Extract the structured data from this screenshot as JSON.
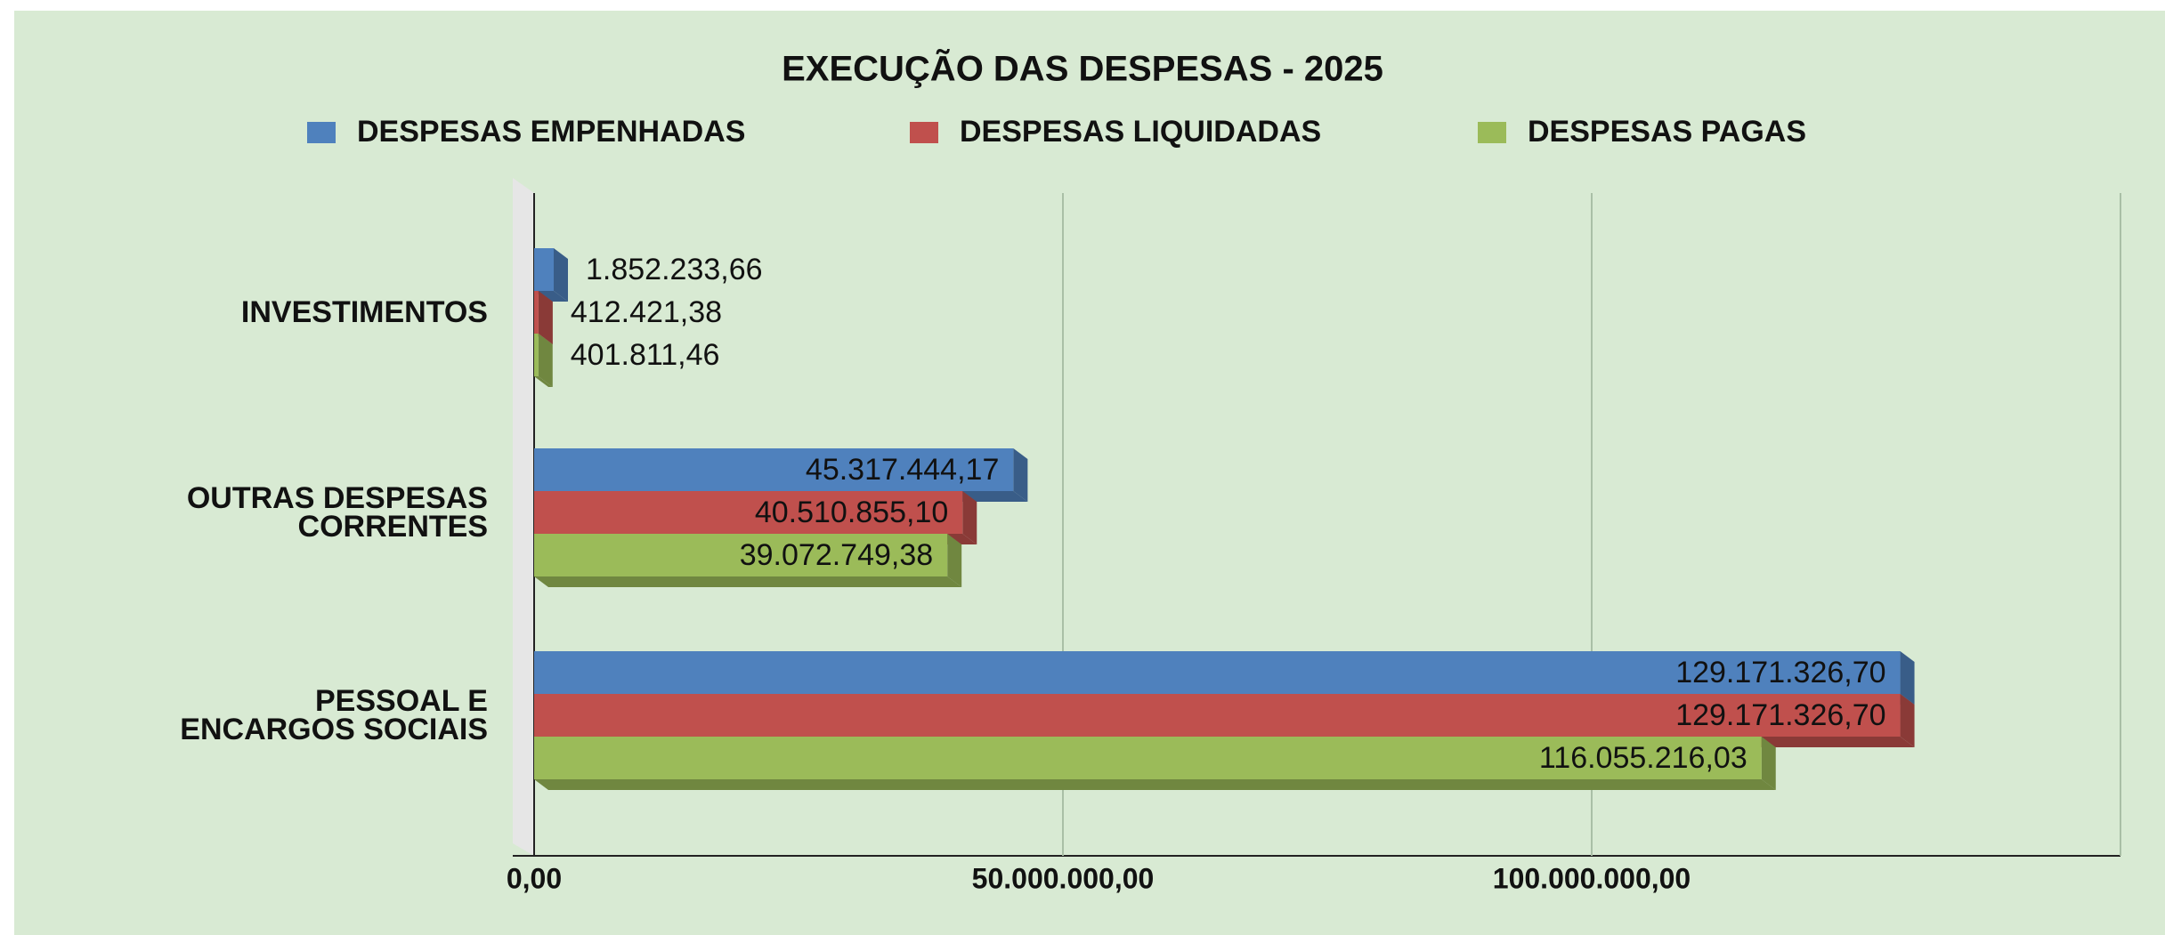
{
  "chart_data": {
    "type": "bar",
    "orientation": "horizontal",
    "title": "EXECUÇÃO DAS DESPESAS - 2025",
    "categories": [
      "INVESTIMENTOS",
      "OUTRAS DESPESAS\nCORRENTES",
      "PESSOAL E\nENCARGOS SOCIAIS"
    ],
    "series": [
      {
        "name": "DESPESAS EMPENHADAS",
        "color": "#4f81bd",
        "values": [
          1852233.66,
          45317444.17,
          129171326.7
        ],
        "value_labels": [
          "1.852.233,66",
          "45.317.444,17",
          "129.171.326,70"
        ]
      },
      {
        "name": "DESPESAS LIQUIDADAS",
        "color": "#c0504d",
        "values": [
          412421.38,
          40510855.1,
          129171326.7
        ],
        "value_labels": [
          "412.421,38",
          "40.510.855,10",
          "129.171.326,70"
        ]
      },
      {
        "name": "DESPESAS PAGAS",
        "color": "#9bbb59",
        "values": [
          401811.46,
          39072749.38,
          116055216.03
        ],
        "value_labels": [
          "401.811,46",
          "39.072.749,38",
          "116.055.216,03"
        ]
      }
    ],
    "xlim": [
      0,
      150000000
    ],
    "xticks": [
      {
        "value": 0,
        "label": "0,00"
      },
      {
        "value": 50000000,
        "label": "50.000.000,00"
      },
      {
        "value": 100000000,
        "label": "100.000.000,00"
      }
    ],
    "grid": true,
    "legend": "top"
  }
}
